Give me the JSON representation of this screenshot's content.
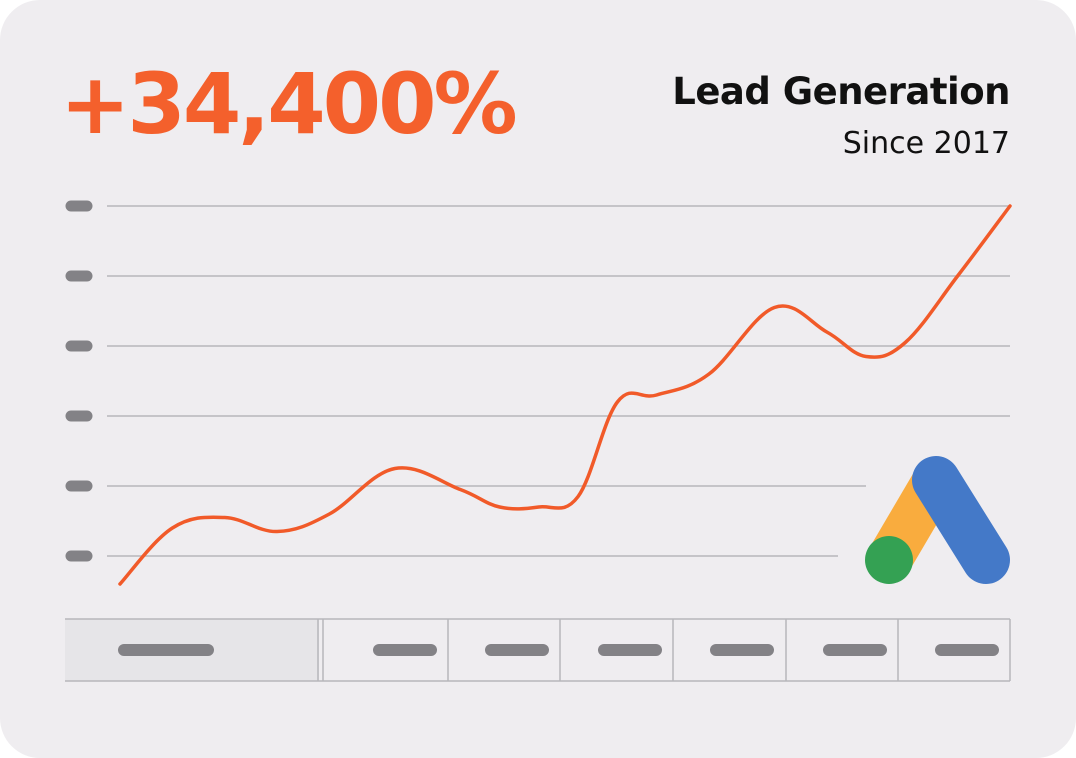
{
  "headline": {
    "text": "+34,400%",
    "color": "#f4602c"
  },
  "header": {
    "title": "Lead Generation",
    "subtitle": "Since 2017"
  },
  "colors": {
    "line": "#f15a29",
    "grid": "#b7b6ba",
    "placeholder": "#838286",
    "logo_yellow": "#f9ac3e",
    "logo_blue": "#4479c8",
    "logo_green": "#34a153"
  },
  "logo": {
    "name": "google-ads-logo"
  },
  "chart_data": {
    "type": "line",
    "title": "",
    "xlabel": "",
    "ylabel": "",
    "ylim": [
      0,
      6
    ],
    "grid": true,
    "y_tick_count": 6,
    "x_tick_count": 7,
    "series": [
      {
        "x": [
          0,
          0.4,
          0.8,
          1.2,
          1.6,
          2.1,
          2.6,
          2.9,
          3.2,
          3.5,
          3.8,
          4.1,
          4.5,
          5.0,
          5.4,
          5.7,
          6.0,
          6.4,
          6.8
        ],
        "y": [
          -0.4,
          0.4,
          0.55,
          0.35,
          0.6,
          1.25,
          0.95,
          0.7,
          0.7,
          0.85,
          2.2,
          2.3,
          2.6,
          3.55,
          3.2,
          2.85,
          3.05,
          4.0,
          5.0
        ]
      }
    ]
  }
}
